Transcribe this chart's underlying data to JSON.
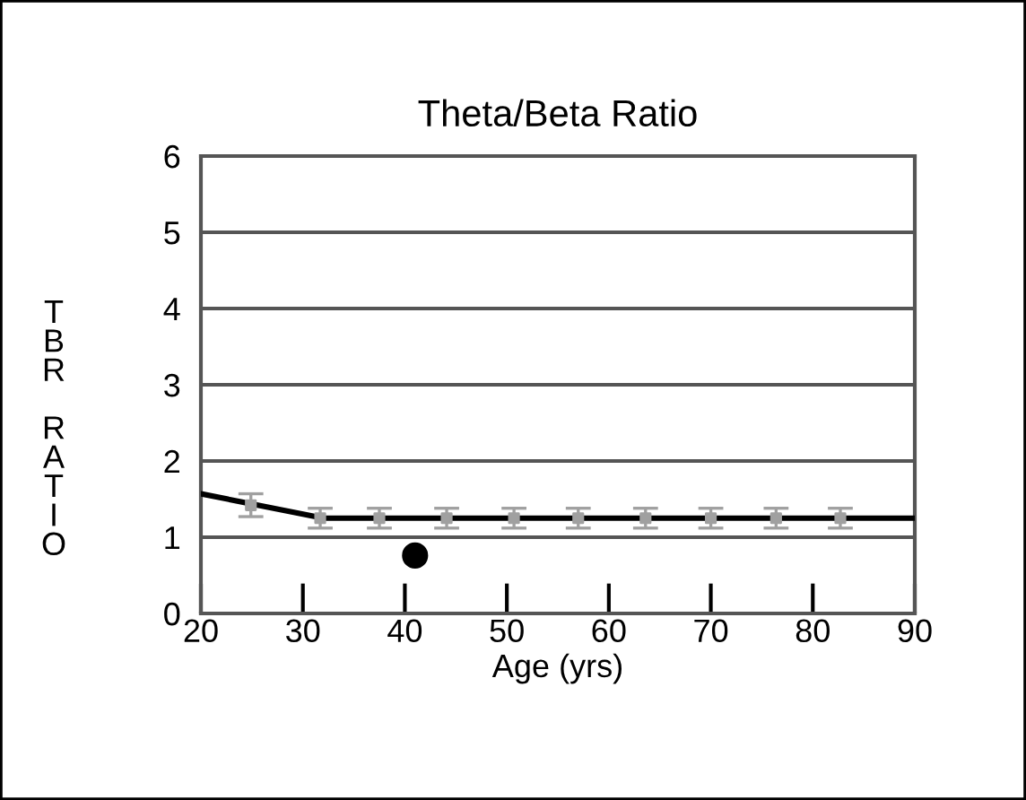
{
  "chart_data": {
    "type": "line",
    "title": "Theta/Beta Ratio",
    "xlabel": "Age (yrs)",
    "ylabel": "TBR RATIO",
    "xlim": [
      20,
      90
    ],
    "xticks": [
      20,
      30,
      40,
      50,
      60,
      70,
      80,
      90
    ],
    "ylim": [
      0,
      6
    ],
    "yticks": [
      0,
      1,
      2,
      3,
      4,
      5,
      6
    ],
    "grid": "y",
    "legend": false,
    "series": [
      {
        "color": "#000000",
        "x": [
          20,
          32,
          90
        ],
        "values": [
          1.57,
          1.25,
          1.25
        ]
      },
      {
        "type": "scatter",
        "marker": "square",
        "color": "#a0a0a0",
        "x": [
          24.9,
          31.7,
          37.5,
          44.1,
          50.7,
          57.0,
          63.6,
          70.0,
          76.4,
          82.7
        ],
        "values": [
          1.42,
          1.25,
          1.25,
          1.25,
          1.25,
          1.25,
          1.25,
          1.25,
          1.25,
          1.25
        ],
        "errors": [
          0.15,
          0.13,
          0.13,
          0.13,
          0.13,
          0.13,
          0.13,
          0.13,
          0.13,
          0.13
        ]
      },
      {
        "type": "scatter",
        "marker": "circle",
        "color": "#000000",
        "x": [
          41.0
        ],
        "values": [
          0.76
        ]
      }
    ]
  }
}
